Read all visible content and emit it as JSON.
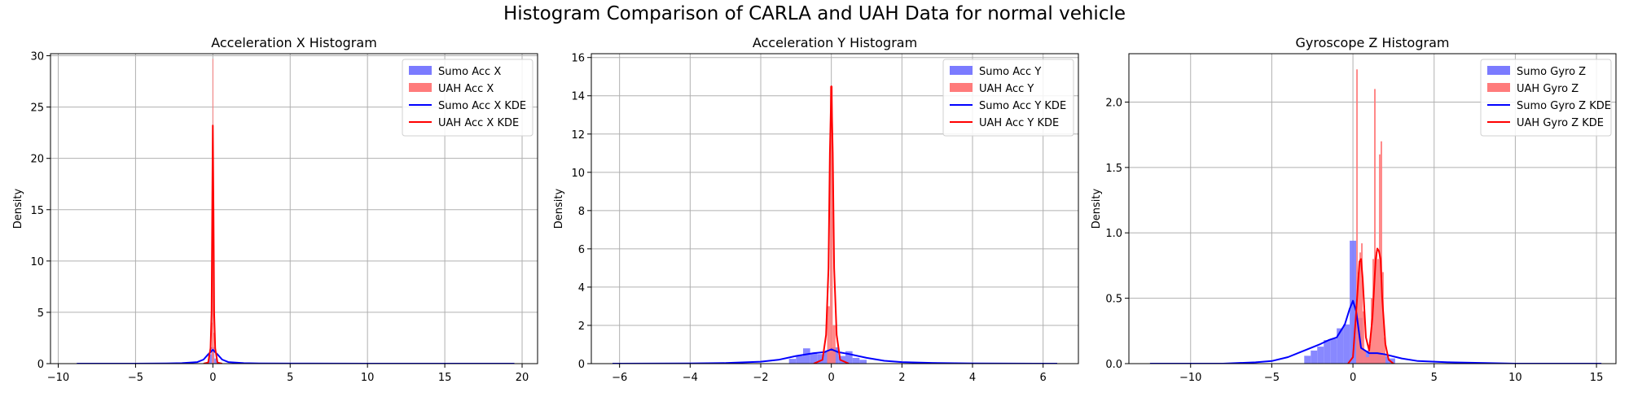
{
  "figure": {
    "title": "Histogram Comparison of CARLA and UAH Data for normal vehicle"
  },
  "colors": {
    "sumo_hist": "#7b7bff",
    "uah_hist": "#ff7b7b",
    "sumo_kde": "#0000ff",
    "uah_kde": "#ff0000",
    "grid": "#b0b0b0"
  },
  "chart_data": [
    {
      "type": "histogram",
      "title": "Acceleration X Histogram",
      "xlabel": "",
      "ylabel": "Density",
      "xlim": [
        -10.5,
        21
      ],
      "ylim": [
        0,
        30.2
      ],
      "xticks": [
        -10,
        -5,
        0,
        5,
        10,
        15,
        20
      ],
      "yticks": [
        0,
        5,
        10,
        15,
        20,
        25,
        30
      ],
      "grid": true,
      "legend_position": "top-right",
      "legend": [
        "Sumo Acc X",
        "UAH Acc X",
        "Sumo Acc X KDE",
        "UAH Acc X KDE"
      ],
      "series": [
        {
          "name": "Sumo Acc X",
          "kind": "hist",
          "color": "sumo_hist",
          "bins": [
            [
              -0.3,
              -0.1,
              0.9
            ],
            [
              -0.1,
              0.1,
              1.6
            ],
            [
              0.1,
              0.3,
              0.5
            ]
          ]
        },
        {
          "name": "UAH Acc X",
          "kind": "hist",
          "color": "uah_hist",
          "bins": [
            [
              -0.06,
              -0.02,
              4
            ],
            [
              -0.02,
              0.02,
              29.7
            ],
            [
              0.02,
              0.06,
              3
            ]
          ]
        },
        {
          "name": "Sumo Acc X KDE",
          "kind": "line",
          "color": "sumo_kde",
          "x": [
            -8.8,
            -5,
            -3,
            -2,
            -1,
            -0.6,
            -0.3,
            0,
            0.3,
            0.6,
            1,
            2,
            3,
            5,
            10,
            19.5
          ],
          "y": [
            0,
            0,
            0.02,
            0.05,
            0.15,
            0.4,
            0.9,
            1.35,
            0.9,
            0.4,
            0.15,
            0.05,
            0.02,
            0.01,
            0,
            0
          ]
        },
        {
          "name": "UAH Acc X KDE",
          "kind": "line",
          "color": "uah_kde",
          "x": [
            -0.6,
            -0.3,
            -0.15,
            -0.08,
            -0.04,
            0,
            0.04,
            0.08,
            0.15,
            0.3,
            0.6
          ],
          "y": [
            0,
            0.1,
            1.5,
            5,
            15,
            23.2,
            15,
            5,
            1.5,
            0.1,
            0
          ]
        }
      ]
    },
    {
      "type": "histogram",
      "title": "Acceleration Y Histogram",
      "xlabel": "",
      "ylabel": "Density",
      "xlim": [
        -6.8,
        7.0
      ],
      "ylim": [
        0,
        16.2
      ],
      "xticks": [
        -6,
        -4,
        -2,
        0,
        2,
        4,
        6
      ],
      "yticks": [
        0,
        2,
        4,
        6,
        8,
        10,
        12,
        14,
        16
      ],
      "grid": true,
      "legend_position": "top-right",
      "legend": [
        "Sumo Acc Y",
        "UAH Acc Y",
        "Sumo Acc Y KDE",
        "UAH Acc Y KDE"
      ],
      "series": [
        {
          "name": "Sumo Acc Y",
          "kind": "hist",
          "color": "sumo_hist",
          "bins": [
            [
              -1.2,
              -1.0,
              0.25
            ],
            [
              -1.0,
              -0.8,
              0.4
            ],
            [
              -0.8,
              -0.6,
              0.8
            ],
            [
              -0.6,
              -0.4,
              0.55
            ],
            [
              -0.4,
              -0.2,
              0.5
            ],
            [
              -0.2,
              0,
              0.6
            ],
            [
              0,
              0.2,
              0.85
            ],
            [
              0.2,
              0.4,
              0.4
            ],
            [
              0.4,
              0.6,
              0.65
            ],
            [
              0.6,
              0.8,
              0.3
            ],
            [
              0.8,
              1.0,
              0.2
            ]
          ]
        },
        {
          "name": "UAH Acc Y",
          "kind": "hist",
          "color": "uah_hist",
          "bins": [
            [
              -0.12,
              -0.04,
              3
            ],
            [
              -0.04,
              0.04,
              14.5
            ],
            [
              0.04,
              0.12,
              2
            ]
          ]
        },
        {
          "name": "Sumo Acc Y KDE",
          "kind": "line",
          "color": "sumo_kde",
          "x": [
            -6.2,
            -4,
            -3,
            -2,
            -1.5,
            -1,
            -0.5,
            -0.2,
            0,
            0.2,
            0.5,
            1,
            1.5,
            2,
            3,
            4,
            6.4
          ],
          "y": [
            0,
            0.01,
            0.03,
            0.1,
            0.2,
            0.4,
            0.55,
            0.6,
            0.75,
            0.6,
            0.5,
            0.3,
            0.15,
            0.08,
            0.03,
            0.01,
            0
          ]
        },
        {
          "name": "UAH Acc Y KDE",
          "kind": "line",
          "color": "uah_kde",
          "x": [
            -0.5,
            -0.25,
            -0.15,
            -0.08,
            -0.04,
            0,
            0.04,
            0.08,
            0.15,
            0.25,
            0.5
          ],
          "y": [
            0,
            0.2,
            1.5,
            5,
            11,
            14.5,
            11,
            5,
            1.5,
            0.2,
            0
          ]
        }
      ]
    },
    {
      "type": "histogram",
      "title": "Gyroscope Z Histogram",
      "xlabel": "",
      "ylabel": "Density",
      "xlim": [
        -13.8,
        16.2
      ],
      "ylim": [
        0,
        2.37
      ],
      "xticks": [
        -10,
        -5,
        0,
        5,
        10,
        15
      ],
      "yticks": [
        0,
        0.5,
        1.0,
        1.5,
        2.0
      ],
      "ytick_labels": [
        "0.0",
        "0.5",
        "1.0",
        "1.5",
        "2.0"
      ],
      "grid": true,
      "legend_position": "top-right",
      "legend": [
        "Sumo Gyro Z",
        "UAH Gyro Z",
        "Sumo Gyro Z KDE",
        "UAH Gyro Z KDE"
      ],
      "series": [
        {
          "name": "Sumo Gyro Z",
          "kind": "hist",
          "color": "sumo_hist",
          "bins": [
            [
              -3.0,
              -2.6,
              0.06
            ],
            [
              -2.6,
              -2.2,
              0.1
            ],
            [
              -2.2,
              -1.8,
              0.13
            ],
            [
              -1.8,
              -1.4,
              0.18
            ],
            [
              -1.4,
              -1.0,
              0.19
            ],
            [
              -1.0,
              -0.6,
              0.27
            ],
            [
              -0.6,
              -0.2,
              0.3
            ],
            [
              -0.2,
              0.2,
              0.94
            ],
            [
              0.2,
              0.6,
              0.35
            ],
            [
              0.6,
              1.0,
              0.1
            ],
            [
              1.0,
              1.4,
              0.08
            ],
            [
              1.4,
              1.8,
              0.08
            ],
            [
              1.8,
              2.2,
              0.06
            ],
            [
              2.2,
              2.6,
              0.04
            ]
          ]
        },
        {
          "name": "UAH Gyro Z",
          "kind": "hist",
          "color": "uah_hist",
          "bins": [
            [
              0.2,
              0.3,
              2.25
            ],
            [
              0.3,
              0.4,
              0.7
            ],
            [
              0.4,
              0.5,
              0.85
            ],
            [
              0.5,
              0.6,
              0.92
            ],
            [
              0.6,
              0.7,
              0.4
            ],
            [
              0.7,
              0.8,
              0.1
            ],
            [
              0.8,
              0.9,
              0.05
            ],
            [
              0.9,
              1.0,
              0.05
            ],
            [
              1.0,
              1.1,
              0.15
            ],
            [
              1.1,
              1.2,
              0.5
            ],
            [
              1.2,
              1.3,
              0.8
            ],
            [
              1.3,
              1.4,
              2.1
            ],
            [
              1.4,
              1.5,
              0.85
            ],
            [
              1.5,
              1.6,
              0.8
            ],
            [
              1.6,
              1.7,
              1.6
            ],
            [
              1.7,
              1.8,
              1.7
            ],
            [
              1.8,
              1.9,
              0.7
            ],
            [
              1.9,
              2.0,
              0.2
            ]
          ]
        },
        {
          "name": "Sumo Gyro Z KDE",
          "kind": "line",
          "color": "sumo_kde",
          "x": [
            -12.5,
            -8,
            -6,
            -5,
            -4,
            -3,
            -2,
            -1.5,
            -1,
            -0.5,
            -0.2,
            0,
            0.2,
            0.5,
            1,
            1.5,
            2,
            3,
            4,
            6,
            10,
            15.3
          ],
          "y": [
            0,
            0,
            0.01,
            0.02,
            0.05,
            0.1,
            0.15,
            0.18,
            0.2,
            0.3,
            0.42,
            0.48,
            0.4,
            0.12,
            0.08,
            0.08,
            0.07,
            0.04,
            0.02,
            0.01,
            0,
            0
          ]
        },
        {
          "name": "UAH Gyro Z KDE",
          "kind": "line",
          "color": "uah_kde",
          "x": [
            -0.3,
            0,
            0.2,
            0.4,
            0.5,
            0.6,
            0.8,
            1.0,
            1.2,
            1.4,
            1.5,
            1.6,
            1.7,
            1.8,
            2.0,
            2.2,
            2.5
          ],
          "y": [
            0,
            0.05,
            0.4,
            0.78,
            0.8,
            0.65,
            0.2,
            0.1,
            0.35,
            0.8,
            0.88,
            0.86,
            0.8,
            0.5,
            0.15,
            0.03,
            0
          ]
        }
      ]
    }
  ]
}
